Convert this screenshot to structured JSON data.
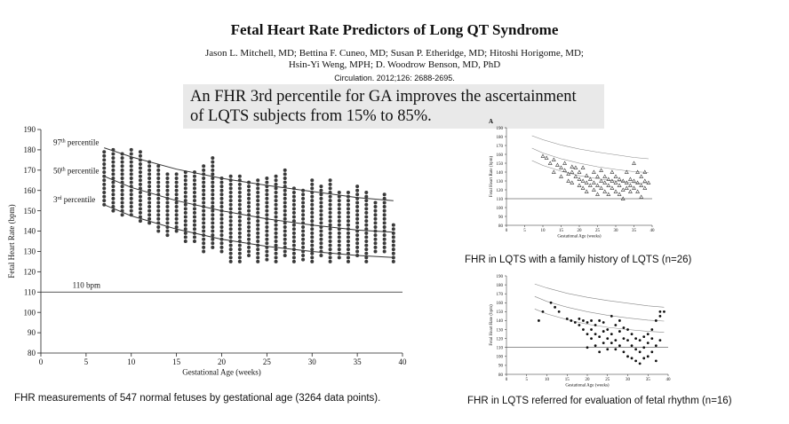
{
  "paper": {
    "title": "Fetal Heart Rate Predictors of Long QT Syndrome",
    "authors_line1": "Jason L. Mitchell, MD; Bettina F. Cuneo, MD; Susan P. Etheridge, MD; Hitoshi Horigome, MD;",
    "authors_line2": "Hsin-Yi Weng, MPH; D. Woodrow Benson, MD, PhD",
    "citation": "Circulation. 2012;126: 2688-2695.",
    "highlight_line1": "An FHR 3rd percentile for GA improves the ascertainment",
    "highlight_line2": "of LQTS subjects from 15% to 85%."
  },
  "captions": {
    "main": "FHR measurements of 547 normal fetuses by gestational age (3264 data points).",
    "panel_a": "FHR in LQTS with a family history of LQTS (n=26)",
    "panel_b": "FHR in LQTS referred for evaluation of fetal rhythm (n=16)"
  },
  "chart_data": [
    {
      "type": "scatter",
      "title": "",
      "xlabel": "Gestational Age (weeks)",
      "ylabel": "Fetal Heart Rate (bpm)",
      "xlim": [
        0,
        40
      ],
      "ylim": [
        80,
        190
      ],
      "xticks": [
        0,
        5,
        10,
        15,
        20,
        25,
        30,
        35,
        40
      ],
      "yticks": [
        80,
        90,
        100,
        110,
        120,
        130,
        140,
        150,
        160,
        170,
        180,
        190
      ],
      "reference_line": {
        "y": 110,
        "label": "110 bpm"
      },
      "percentile_curves": [
        {
          "name": "97th percentile",
          "x": [
            7,
            10,
            15,
            20,
            25,
            30,
            35,
            39
          ],
          "y": [
            181,
            176.5,
            170.5,
            166,
            162.5,
            159.5,
            156.5,
            155
          ]
        },
        {
          "name": "50th percentile",
          "x": [
            7,
            10,
            15,
            20,
            25,
            30,
            35,
            39
          ],
          "y": [
            167,
            161.5,
            155,
            150,
            146,
            143,
            140.5,
            139.5
          ]
        },
        {
          "name": "3rd percentile",
          "x": [
            7,
            10,
            15,
            20,
            25,
            30,
            35,
            39
          ],
          "y": [
            153,
            147.5,
            141,
            136,
            132.5,
            130,
            128,
            127
          ]
        }
      ],
      "point_columns": [
        {
          "x": 7,
          "min": 153,
          "max": 179
        },
        {
          "x": 8,
          "min": 150,
          "max": 180
        },
        {
          "x": 9,
          "min": 148,
          "max": 178
        },
        {
          "x": 10,
          "min": 148,
          "max": 180
        },
        {
          "x": 11,
          "min": 145,
          "max": 180
        },
        {
          "x": 12,
          "min": 144,
          "max": 174
        },
        {
          "x": 13,
          "min": 140,
          "max": 172
        },
        {
          "x": 14,
          "min": 138,
          "max": 169
        },
        {
          "x": 15,
          "min": 140,
          "max": 168
        },
        {
          "x": 16,
          "min": 135,
          "max": 170
        },
        {
          "x": 17,
          "min": 135,
          "max": 169
        },
        {
          "x": 18,
          "min": 130,
          "max": 173
        },
        {
          "x": 19,
          "min": 132,
          "max": 176
        },
        {
          "x": 20,
          "min": 130,
          "max": 166
        },
        {
          "x": 21,
          "min": 125,
          "max": 168
        },
        {
          "x": 22,
          "min": 125,
          "max": 168
        },
        {
          "x": 23,
          "min": 128,
          "max": 165
        },
        {
          "x": 24,
          "min": 125,
          "max": 166
        },
        {
          "x": 25,
          "min": 126,
          "max": 167
        },
        {
          "x": 26,
          "min": 125,
          "max": 168
        },
        {
          "x": 27,
          "min": 128,
          "max": 170
        },
        {
          "x": 28,
          "min": 125,
          "max": 162
        },
        {
          "x": 29,
          "min": 126,
          "max": 160
        },
        {
          "x": 30,
          "min": 125,
          "max": 165
        },
        {
          "x": 31,
          "min": 128,
          "max": 162
        },
        {
          "x": 32,
          "min": 125,
          "max": 166
        },
        {
          "x": 33,
          "min": 127,
          "max": 160
        },
        {
          "x": 34,
          "min": 125,
          "max": 160
        },
        {
          "x": 35,
          "min": 128,
          "max": 162
        },
        {
          "x": 36,
          "min": 125,
          "max": 160
        },
        {
          "x": 37,
          "min": 130,
          "max": 155
        },
        {
          "x": 38,
          "min": 130,
          "max": 158
        },
        {
          "x": 39,
          "min": 125,
          "max": 143
        }
      ],
      "point_step": 2
    },
    {
      "type": "scatter",
      "panel_label": "A",
      "xlabel": "Gestational Age (weeks)",
      "ylabel": "Fetal Heart Rate (bpm)",
      "xlim": [
        0,
        40
      ],
      "ylim": [
        80,
        190
      ],
      "xticks": [
        0,
        5,
        10,
        15,
        20,
        25,
        30,
        35,
        40
      ],
      "yticks": [
        80,
        90,
        100,
        110,
        120,
        130,
        140,
        150,
        160,
        170,
        180,
        190
      ],
      "reference_line": {
        "y": 110
      },
      "percentile_curves": [
        {
          "x": [
            7,
            10,
            15,
            20,
            25,
            30,
            35,
            39
          ],
          "y": [
            181,
            176.5,
            170.5,
            166,
            162.5,
            159.5,
            156.5,
            155
          ]
        },
        {
          "x": [
            7,
            10,
            15,
            20,
            25,
            30,
            35,
            39
          ],
          "y": [
            167,
            161.5,
            155,
            150,
            146,
            143,
            140.5,
            139.5
          ]
        },
        {
          "x": [
            7,
            10,
            15,
            20,
            25,
            30,
            35,
            39
          ],
          "y": [
            153,
            147.5,
            141,
            136,
            132.5,
            130,
            128,
            127
          ]
        }
      ],
      "marker": "triangle",
      "points": [
        [
          10,
          158
        ],
        [
          11,
          156
        ],
        [
          12,
          150
        ],
        [
          13,
          154
        ],
        [
          13,
          140
        ],
        [
          14,
          148
        ],
        [
          15,
          145
        ],
        [
          15,
          135
        ],
        [
          16,
          142
        ],
        [
          16,
          150
        ],
        [
          17,
          138
        ],
        [
          17,
          130
        ],
        [
          18,
          146
        ],
        [
          18,
          140
        ],
        [
          18,
          128
        ],
        [
          19,
          135
        ],
        [
          19,
          145
        ],
        [
          20,
          125
        ],
        [
          20,
          132
        ],
        [
          20,
          140
        ],
        [
          21,
          130
        ],
        [
          21,
          122
        ],
        [
          21,
          145
        ],
        [
          22,
          128
        ],
        [
          22,
          136
        ],
        [
          22,
          118
        ],
        [
          23,
          132
        ],
        [
          23,
          125
        ],
        [
          24,
          140
        ],
        [
          24,
          128
        ],
        [
          24,
          120
        ],
        [
          25,
          135
        ],
        [
          25,
          125
        ],
        [
          25,
          115
        ],
        [
          26,
          130
        ],
        [
          26,
          122
        ],
        [
          26,
          142
        ],
        [
          27,
          128
        ],
        [
          27,
          118
        ],
        [
          27,
          135
        ],
        [
          28,
          125
        ],
        [
          28,
          132
        ],
        [
          28,
          115
        ],
        [
          29,
          122
        ],
        [
          29,
          130
        ],
        [
          29,
          140
        ],
        [
          30,
          128
        ],
        [
          30,
          118
        ],
        [
          30,
          135
        ],
        [
          31,
          125
        ],
        [
          31,
          115
        ],
        [
          31,
          132
        ],
        [
          32,
          130
        ],
        [
          32,
          120
        ],
        [
          32,
          110
        ],
        [
          33,
          128
        ],
        [
          33,
          122
        ],
        [
          33,
          140
        ],
        [
          34,
          132
        ],
        [
          34,
          118
        ],
        [
          34,
          125
        ],
        [
          35,
          130
        ],
        [
          35,
          122
        ],
        [
          35,
          150
        ],
        [
          36,
          128
        ],
        [
          36,
          118
        ],
        [
          36,
          140
        ],
        [
          37,
          125
        ],
        [
          37,
          112
        ],
        [
          37,
          135
        ],
        [
          38,
          130
        ],
        [
          38,
          122
        ],
        [
          38,
          140
        ],
        [
          39,
          128
        ]
      ]
    },
    {
      "type": "scatter",
      "xlabel": "Gestational Age (weeks)",
      "ylabel": "Fetal Heart Rate (bpm)",
      "xlim": [
        0,
        40
      ],
      "ylim": [
        80,
        190
      ],
      "xticks": [
        0,
        5,
        10,
        15,
        20,
        25,
        30,
        35,
        40
      ],
      "yticks": [
        80,
        90,
        100,
        110,
        120,
        130,
        140,
        150,
        160,
        170,
        180,
        190
      ],
      "reference_line": {
        "y": 110
      },
      "percentile_curves": [
        {
          "x": [
            7,
            10,
            15,
            20,
            25,
            30,
            35,
            39
          ],
          "y": [
            181,
            176.5,
            170.5,
            166,
            162.5,
            159.5,
            156.5,
            155
          ]
        },
        {
          "x": [
            7,
            10,
            15,
            20,
            25,
            30,
            35,
            39
          ],
          "y": [
            167,
            161.5,
            155,
            150,
            146,
            143,
            140.5,
            139.5
          ]
        },
        {
          "x": [
            7,
            10,
            15,
            20,
            25,
            30,
            35,
            39
          ],
          "y": [
            153,
            147.5,
            141,
            136,
            132.5,
            130,
            128,
            127
          ]
        }
      ],
      "marker": "dot",
      "points": [
        [
          8,
          140
        ],
        [
          9,
          150
        ],
        [
          11,
          160
        ],
        [
          12,
          155
        ],
        [
          13,
          150
        ],
        [
          15,
          142
        ],
        [
          16,
          140
        ],
        [
          17,
          138
        ],
        [
          18,
          142
        ],
        [
          18,
          135
        ],
        [
          19,
          140
        ],
        [
          19,
          130
        ],
        [
          20,
          138
        ],
        [
          20,
          125
        ],
        [
          20,
          110
        ],
        [
          21,
          140
        ],
        [
          21,
          130
        ],
        [
          21,
          120
        ],
        [
          22,
          135
        ],
        [
          22,
          125
        ],
        [
          22,
          112
        ],
        [
          23,
          140
        ],
        [
          23,
          122
        ],
        [
          23,
          105
        ],
        [
          24,
          138
        ],
        [
          24,
          128
        ],
        [
          24,
          115
        ],
        [
          25,
          130
        ],
        [
          25,
          120
        ],
        [
          25,
          108
        ],
        [
          26,
          145
        ],
        [
          26,
          125
        ],
        [
          26,
          115
        ],
        [
          27,
          135
        ],
        [
          27,
          118
        ],
        [
          27,
          108
        ],
        [
          28,
          140
        ],
        [
          28,
          128
        ],
        [
          28,
          112
        ],
        [
          29,
          132
        ],
        [
          29,
          120
        ],
        [
          29,
          105
        ],
        [
          30,
          130
        ],
        [
          30,
          118
        ],
        [
          30,
          100
        ],
        [
          31,
          125
        ],
        [
          31,
          112
        ],
        [
          31,
          98
        ],
        [
          32,
          120
        ],
        [
          32,
          108
        ],
        [
          32,
          95
        ],
        [
          33,
          118
        ],
        [
          33,
          105
        ],
        [
          33,
          92
        ],
        [
          34,
          122
        ],
        [
          34,
          110
        ],
        [
          34,
          98
        ],
        [
          35,
          125
        ],
        [
          35,
          115
        ],
        [
          35,
          100
        ],
        [
          36,
          130
        ],
        [
          36,
          120
        ],
        [
          36,
          105
        ],
        [
          37,
          140
        ],
        [
          37,
          112
        ],
        [
          37,
          95
        ],
        [
          38,
          145
        ],
        [
          38,
          118
        ],
        [
          38,
          150
        ],
        [
          39,
          150
        ]
      ]
    }
  ]
}
